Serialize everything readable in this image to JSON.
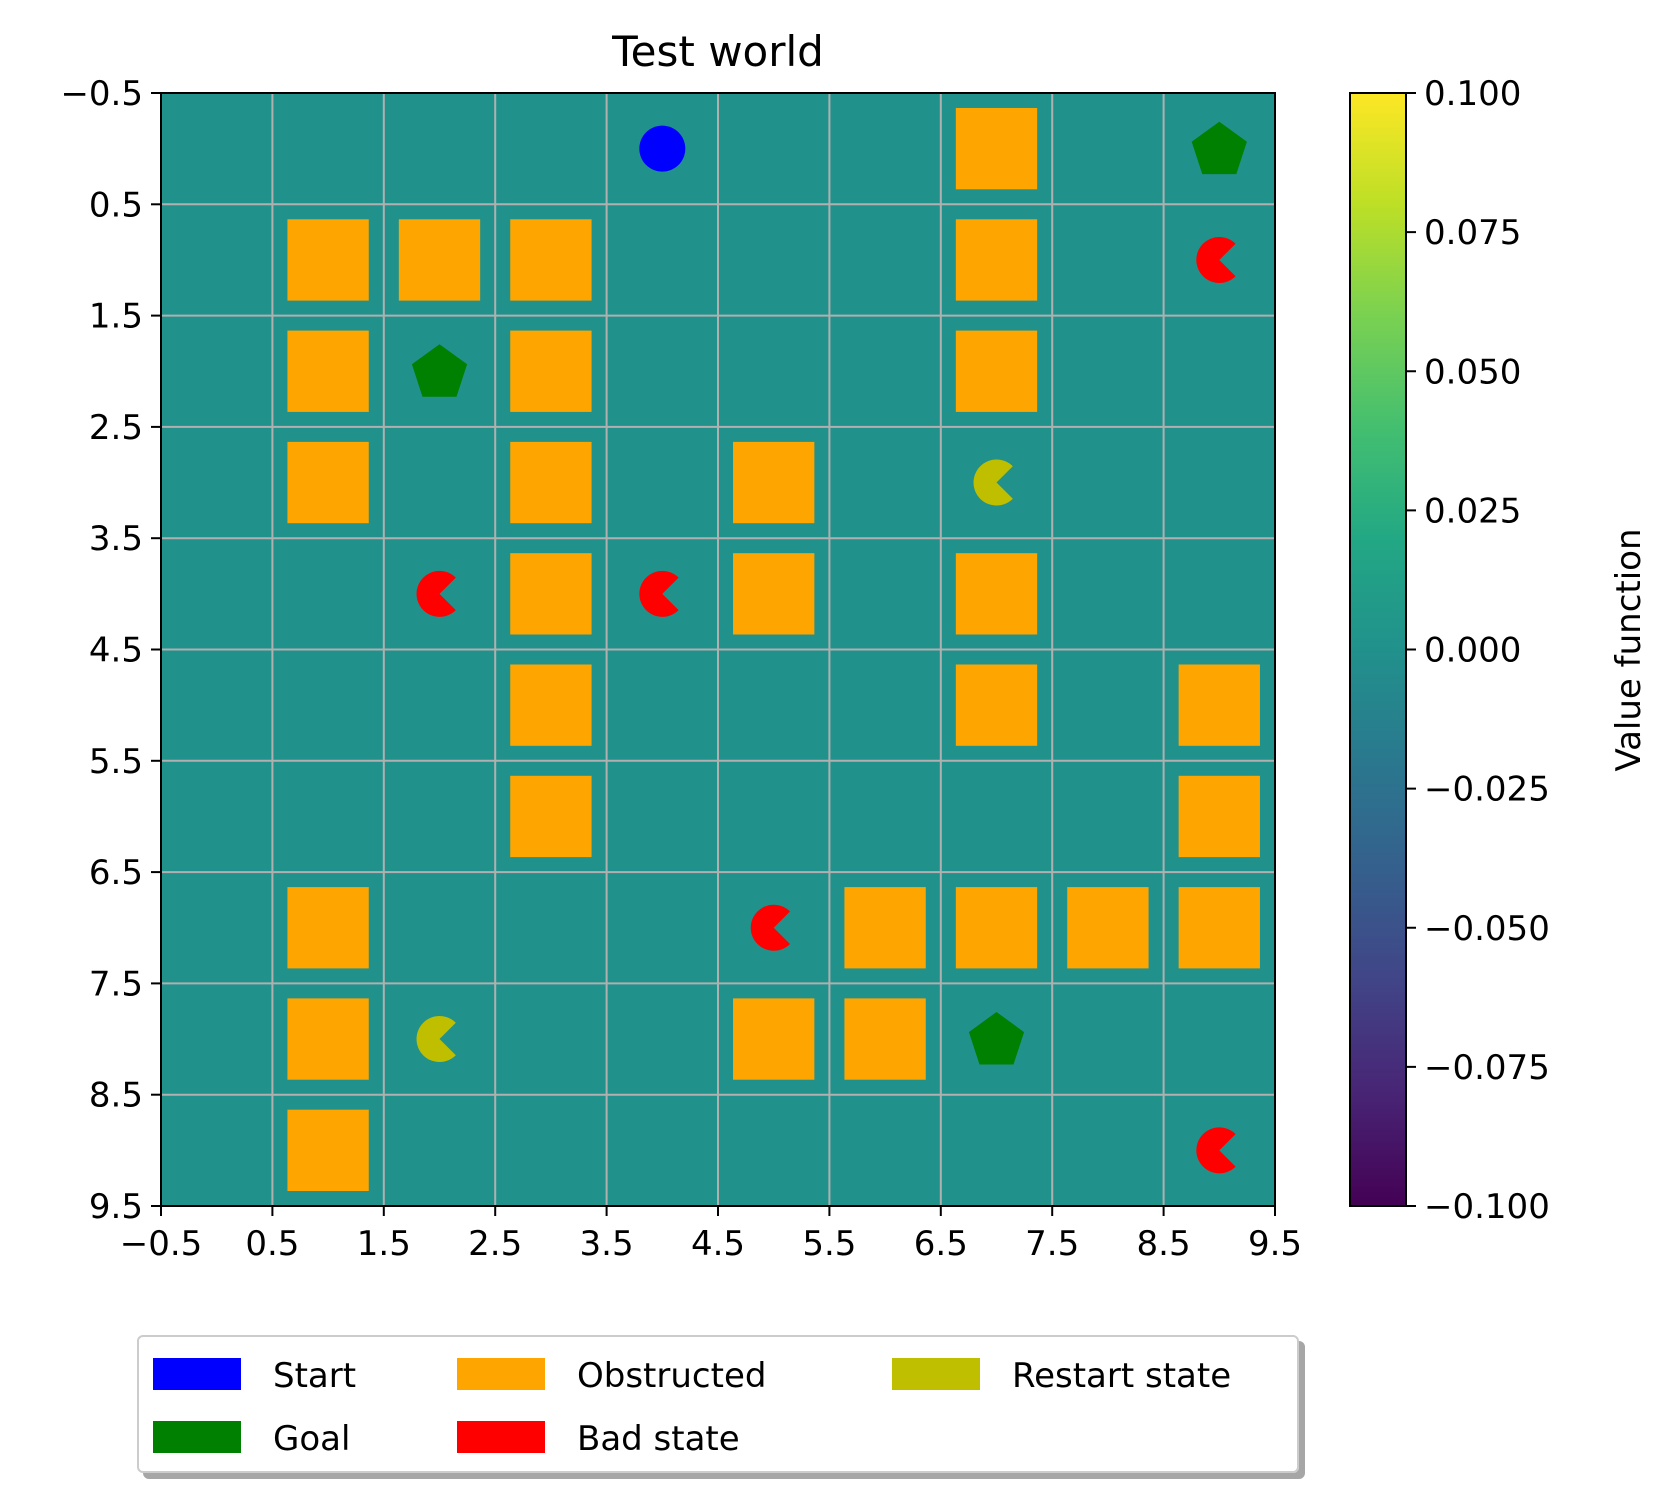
{
  "chart_data": {
    "type": "heatmap",
    "title": "Test world",
    "xlabel": "",
    "ylabel": "",
    "xlim": [
      -0.5,
      9.5
    ],
    "ylim": [
      9.5,
      -0.5
    ],
    "x_ticks": [
      "−0.5",
      "0.5",
      "1.5",
      "2.5",
      "3.5",
      "4.5",
      "5.5",
      "6.5",
      "7.5",
      "8.5",
      "9.5"
    ],
    "y_ticks": [
      "−0.5",
      "0.5",
      "1.5",
      "2.5",
      "3.5",
      "4.5",
      "5.5",
      "6.5",
      "7.5",
      "8.5",
      "9.5"
    ],
    "grid": true,
    "value_function": [
      [
        0,
        0,
        0,
        0,
        0,
        0,
        0,
        0,
        0,
        0
      ],
      [
        0,
        0,
        0,
        0,
        0,
        0,
        0,
        0,
        0,
        0
      ],
      [
        0,
        0,
        0,
        0,
        0,
        0,
        0,
        0,
        0,
        0
      ],
      [
        0,
        0,
        0,
        0,
        0,
        0,
        0,
        0,
        0,
        0
      ],
      [
        0,
        0,
        0,
        0,
        0,
        0,
        0,
        0,
        0,
        0
      ],
      [
        0,
        0,
        0,
        0,
        0,
        0,
        0,
        0,
        0,
        0
      ],
      [
        0,
        0,
        0,
        0,
        0,
        0,
        0,
        0,
        0,
        0
      ],
      [
        0,
        0,
        0,
        0,
        0,
        0,
        0,
        0,
        0,
        0
      ],
      [
        0,
        0,
        0,
        0,
        0,
        0,
        0,
        0,
        0,
        0
      ],
      [
        0,
        0,
        0,
        0,
        0,
        0,
        0,
        0,
        0,
        0
      ]
    ],
    "colorbar": {
      "label": "Value function",
      "colormap": "viridis",
      "range": [
        -0.1,
        0.1
      ],
      "ticks": [
        {
          "value": 0.1,
          "label": "0.100"
        },
        {
          "value": 0.075,
          "label": "0.075"
        },
        {
          "value": 0.05,
          "label": "0.050"
        },
        {
          "value": 0.025,
          "label": "0.025"
        },
        {
          "value": 0.0,
          "label": "0.000"
        },
        {
          "value": -0.025,
          "label": "−0.025"
        },
        {
          "value": -0.05,
          "label": "−0.050"
        },
        {
          "value": -0.075,
          "label": "−0.075"
        },
        {
          "value": -0.1,
          "label": "−0.100"
        }
      ]
    },
    "cell_color": "#21918c",
    "start": [
      {
        "x": 4,
        "y": 0
      }
    ],
    "goals": [
      {
        "x": 9,
        "y": 0
      },
      {
        "x": 2,
        "y": 2
      },
      {
        "x": 7,
        "y": 8
      }
    ],
    "obstructed": [
      {
        "x": 7,
        "y": 0
      },
      {
        "x": 1,
        "y": 1
      },
      {
        "x": 2,
        "y": 1
      },
      {
        "x": 3,
        "y": 1
      },
      {
        "x": 7,
        "y": 1
      },
      {
        "x": 1,
        "y": 2
      },
      {
        "x": 3,
        "y": 2
      },
      {
        "x": 7,
        "y": 2
      },
      {
        "x": 1,
        "y": 3
      },
      {
        "x": 3,
        "y": 3
      },
      {
        "x": 5,
        "y": 3
      },
      {
        "x": 3,
        "y": 4
      },
      {
        "x": 5,
        "y": 4
      },
      {
        "x": 7,
        "y": 4
      },
      {
        "x": 3,
        "y": 5
      },
      {
        "x": 7,
        "y": 5
      },
      {
        "x": 9,
        "y": 5
      },
      {
        "x": 3,
        "y": 6
      },
      {
        "x": 9,
        "y": 6
      },
      {
        "x": 1,
        "y": 7
      },
      {
        "x": 6,
        "y": 7
      },
      {
        "x": 7,
        "y": 7
      },
      {
        "x": 8,
        "y": 7
      },
      {
        "x": 9,
        "y": 7
      },
      {
        "x": 1,
        "y": 8
      },
      {
        "x": 5,
        "y": 8
      },
      {
        "x": 6,
        "y": 8
      },
      {
        "x": 1,
        "y": 9
      }
    ],
    "bad_states": [
      {
        "x": 9,
        "y": 1
      },
      {
        "x": 2,
        "y": 4
      },
      {
        "x": 4,
        "y": 4
      },
      {
        "x": 5,
        "y": 7
      },
      {
        "x": 9,
        "y": 9
      }
    ],
    "restart_states": [
      {
        "x": 7,
        "y": 3
      },
      {
        "x": 2,
        "y": 8
      }
    ],
    "legend": {
      "placement": "bottom",
      "columns": 3,
      "entries": [
        {
          "label": "Start",
          "color": "#0000ff"
        },
        {
          "label": "Goal",
          "color": "#008000"
        },
        {
          "label": "Obstructed",
          "color": "#ffa500"
        },
        {
          "label": "Bad state",
          "color": "#ff0000"
        },
        {
          "label": "Restart state",
          "color": "#bfbf00"
        }
      ]
    }
  }
}
